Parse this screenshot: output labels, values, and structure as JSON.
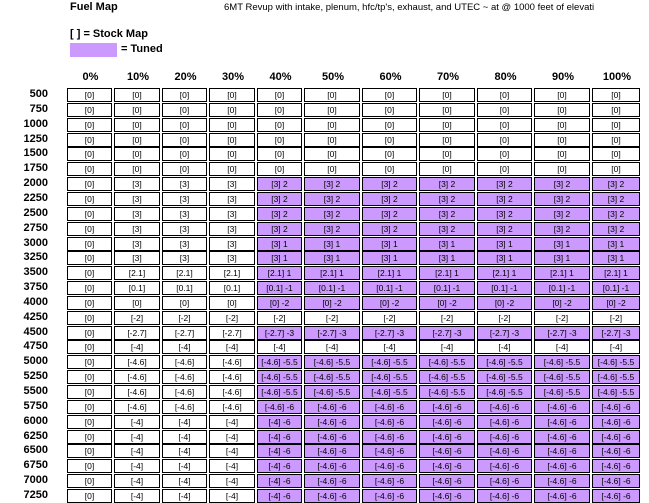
{
  "header": {
    "title": "Fuel Map",
    "subtitle": "6MT Revup with intake, plenum, hfc/tp's, exhaust, and UTEC ~ at @ 1000 feet of elevati"
  },
  "legend": {
    "stock_label": "[ ] = Stock Map",
    "tuned_label": "= Tuned",
    "tuned_color": "#cc99ff"
  },
  "table": {
    "columns": [
      "0%",
      "10%",
      "20%",
      "30%",
      "40%",
      "50%",
      "60%",
      "70%",
      "80%",
      "90%",
      "100%"
    ],
    "rows": [
      {
        "rpm": "500",
        "tuned": false,
        "cells": [
          "[0]",
          "[0]",
          "[0]",
          "[0]",
          "[0]",
          "[0]",
          "[0]",
          "[0]",
          "[0]",
          "[0]",
          "[0]"
        ]
      },
      {
        "rpm": "750",
        "tuned": false,
        "cells": [
          "[0]",
          "[0]",
          "[0]",
          "[0]",
          "[0]",
          "[0]",
          "[0]",
          "[0]",
          "[0]",
          "[0]",
          "[0]"
        ]
      },
      {
        "rpm": "1000",
        "tuned": false,
        "cells": [
          "[0]",
          "[0]",
          "[0]",
          "[0]",
          "[0]",
          "[0]",
          "[0]",
          "[0]",
          "[0]",
          "[0]",
          "[0]"
        ]
      },
      {
        "rpm": "1250",
        "tuned": false,
        "cells": [
          "[0]",
          "[0]",
          "[0]",
          "[0]",
          "[0]",
          "[0]",
          "[0]",
          "[0]",
          "[0]",
          "[0]",
          "[0]"
        ]
      },
      {
        "rpm": "1500",
        "tuned": false,
        "cells": [
          "[0]",
          "[0]",
          "[0]",
          "[0]",
          "[0]",
          "[0]",
          "[0]",
          "[0]",
          "[0]",
          "[0]",
          "[0]"
        ]
      },
      {
        "rpm": "1750",
        "tuned": false,
        "cells": [
          "[0]",
          "[0]",
          "[0]",
          "[0]",
          "[0]",
          "[0]",
          "[0]",
          "[0]",
          "[0]",
          "[0]",
          "[0]"
        ]
      },
      {
        "rpm": "2000",
        "tuned": true,
        "cells": [
          "[0]",
          "[3]",
          "[3]",
          "[3]",
          "[3] 2",
          "[3] 2",
          "[3] 2",
          "[3] 2",
          "[3] 2",
          "[3] 2",
          "[3] 2"
        ]
      },
      {
        "rpm": "2250",
        "tuned": true,
        "cells": [
          "[0]",
          "[3]",
          "[3]",
          "[3]",
          "[3] 2",
          "[3] 2",
          "[3] 2",
          "[3] 2",
          "[3] 2",
          "[3] 2",
          "[3] 2"
        ]
      },
      {
        "rpm": "2500",
        "tuned": true,
        "cells": [
          "[0]",
          "[3]",
          "[3]",
          "[3]",
          "[3] 2",
          "[3] 2",
          "[3] 2",
          "[3] 2",
          "[3] 2",
          "[3] 2",
          "[3] 2"
        ]
      },
      {
        "rpm": "2750",
        "tuned": true,
        "cells": [
          "[0]",
          "[3]",
          "[3]",
          "[3]",
          "[3] 2",
          "[3] 2",
          "[3] 2",
          "[3] 2",
          "[3] 2",
          "[3] 2",
          "[3] 2"
        ]
      },
      {
        "rpm": "3000",
        "tuned": true,
        "cells": [
          "[0]",
          "[3]",
          "[3]",
          "[3]",
          "[3] 1",
          "[3] 1",
          "[3] 1",
          "[3] 1",
          "[3] 1",
          "[3] 1",
          "[3] 1"
        ]
      },
      {
        "rpm": "3250",
        "tuned": true,
        "cells": [
          "[0]",
          "[3]",
          "[3]",
          "[3]",
          "[3] 1",
          "[3] 1",
          "[3] 1",
          "[3] 1",
          "[3] 1",
          "[3] 1",
          "[3] 1"
        ]
      },
      {
        "rpm": "3500",
        "tuned": true,
        "cells": [
          "[0]",
          "[2.1]",
          "[2.1]",
          "[2.1]",
          "[2.1] 1",
          "[2.1] 1",
          "[2.1] 1",
          "[2.1] 1",
          "[2.1] 1",
          "[2.1] 1",
          "[2.1] 1"
        ]
      },
      {
        "rpm": "3750",
        "tuned": true,
        "cells": [
          "[0]",
          "[0.1]",
          "[0.1]",
          "[0.1]",
          "[0.1] -1",
          "[0.1] -1",
          "[0.1] -1",
          "[0.1] -1",
          "[0.1] -1",
          "[0.1] -1",
          "[0.1] -1"
        ]
      },
      {
        "rpm": "4000",
        "tuned": true,
        "cells": [
          "[0]",
          "[0]",
          "[0]",
          "[0]",
          "[0] -2",
          "[0] -2",
          "[0] -2",
          "[0] -2",
          "[0] -2",
          "[0] -2",
          "[0] -2"
        ]
      },
      {
        "rpm": "4250",
        "tuned": false,
        "cells": [
          "[0]",
          "[-2]",
          "[-2]",
          "[-2]",
          "[-2]",
          "[-2]",
          "[-2]",
          "[-2]",
          "[-2]",
          "[-2]",
          "[-2]"
        ]
      },
      {
        "rpm": "4500",
        "tuned": true,
        "cells": [
          "[0]",
          "[-2.7]",
          "[-2.7]",
          "[-2.7]",
          "[-2.7] -3",
          "[-2.7] -3",
          "[-2.7] -3",
          "[-2.7] -3",
          "[-2.7] -3",
          "[-2.7] -3",
          "[-2.7] -3"
        ]
      },
      {
        "rpm": "4750",
        "tuned": false,
        "cells": [
          "[0]",
          "[-4]",
          "[-4]",
          "[-4]",
          "[-4]",
          "[-4]",
          "[-4]",
          "[-4]",
          "[-4]",
          "[-4]",
          "[-4]"
        ]
      },
      {
        "rpm": "5000",
        "tuned": true,
        "cells": [
          "[0]",
          "[-4.6]",
          "[-4.6]",
          "[-4.6]",
          "[-4.6] -5.5",
          "[-4.6] -5.5",
          "[-4.6] -5.5",
          "[-4.6] -5.5",
          "[-4.6] -5.5",
          "[-4.6] -5.5",
          "[-4.6] -5.5"
        ]
      },
      {
        "rpm": "5250",
        "tuned": true,
        "cells": [
          "[0]",
          "[-4.6]",
          "[-4.6]",
          "[-4.6]",
          "[-4.6] -5.5",
          "[-4.6] -5.5",
          "[-4.6] -5.5",
          "[-4.6] -5.5",
          "[-4.6] -5.5",
          "[-4.6] -5.5",
          "[-4.6] -5.5"
        ]
      },
      {
        "rpm": "5500",
        "tuned": true,
        "cells": [
          "[0]",
          "[-4.6]",
          "[-4.6]",
          "[-4.6]",
          "[-4.6] -5.5",
          "[-4.6] -5.5",
          "[-4.6] -5.5",
          "[-4.6] -5.5",
          "[-4.6] -5.5",
          "[-4.6] -5.5",
          "[-4.6] -5.5"
        ]
      },
      {
        "rpm": "5750",
        "tuned": true,
        "cells": [
          "[0]",
          "[-4.6]",
          "[-4.6]",
          "[-4.6]",
          "[-4.6] -6",
          "[-4.6] -6",
          "[-4.6] -6",
          "[-4.6] -6",
          "[-4.6] -6",
          "[-4.6] -6",
          "[-4.6] -6"
        ]
      },
      {
        "rpm": "6000",
        "tuned": true,
        "cells": [
          "[0]",
          "[-4]",
          "[-4]",
          "[-4]",
          "[-4] -6",
          "[-4.6] -6",
          "[-4.6] -6",
          "[-4.6] -6",
          "[-4.6] -6",
          "[-4.6] -6",
          "[-4.6] -6"
        ]
      },
      {
        "rpm": "6250",
        "tuned": true,
        "cells": [
          "[0]",
          "[-4]",
          "[-4]",
          "[-4]",
          "[-4] -6",
          "[-4.6] -6",
          "[-4.6] -6",
          "[-4.6] -6",
          "[-4.6] -6",
          "[-4.6] -6",
          "[-4.6] -6"
        ]
      },
      {
        "rpm": "6500",
        "tuned": true,
        "cells": [
          "[0]",
          "[-4]",
          "[-4]",
          "[-4]",
          "[-4] -6",
          "[-4.6] -6",
          "[-4.6] -6",
          "[-4.6] -6",
          "[-4.6] -6",
          "[-4.6] -6",
          "[-4.6] -6"
        ]
      },
      {
        "rpm": "6750",
        "tuned": true,
        "cells": [
          "[0]",
          "[-4]",
          "[-4]",
          "[-4]",
          "[-4] -6",
          "[-4.6] -6",
          "[-4.6] -6",
          "[-4.6] -6",
          "[-4.6] -6",
          "[-4.6] -6",
          "[-4.6] -6"
        ]
      },
      {
        "rpm": "7000",
        "tuned": true,
        "cells": [
          "[0]",
          "[-4]",
          "[-4]",
          "[-4]",
          "[-4] -6",
          "[-4.6] -6",
          "[-4.6] -6",
          "[-4.6] -6",
          "[-4.6] -6",
          "[-4.6] -6",
          "[-4.6] -6"
        ]
      },
      {
        "rpm": "7250",
        "tuned": true,
        "cells": [
          "[0]",
          "[-4]",
          "[-4]",
          "[-4]",
          "[-4] -6",
          "[-4.6] -6",
          "[-4.6] -6",
          "[-4.6] -6",
          "[-4.6] -6",
          "[-4.6] -6",
          "[-4.6] -6"
        ]
      }
    ]
  }
}
